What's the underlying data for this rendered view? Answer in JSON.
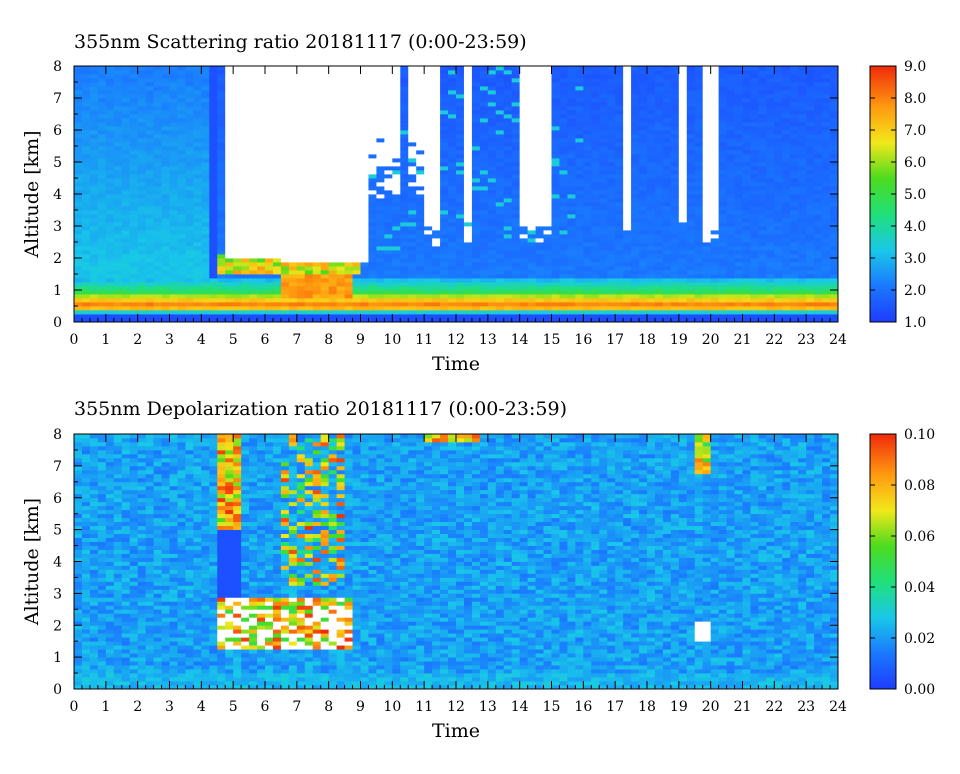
{
  "chart_data": [
    {
      "type": "heatmap",
      "title": "355nm Scattering ratio  20181117 (0:00-23:59)",
      "xlabel": "Time",
      "ylabel": "Altitude [km]",
      "xlim": [
        0,
        24
      ],
      "ylim": [
        0,
        8
      ],
      "xticks": [
        "0",
        "1",
        "2",
        "3",
        "4",
        "5",
        "6",
        "7",
        "8",
        "9",
        "10",
        "11",
        "12",
        "13",
        "14",
        "15",
        "16",
        "17",
        "18",
        "19",
        "20",
        "21",
        "22",
        "23",
        "24"
      ],
      "yticks": [
        "0",
        "1",
        "2",
        "3",
        "4",
        "5",
        "6",
        "7",
        "8"
      ],
      "colorbar": {
        "min": 1.0,
        "max": 9.0,
        "ticks": [
          "1.0",
          "2.0",
          "3.0",
          "4.0",
          "5.0",
          "6.0",
          "7.0",
          "8.0",
          "9.0"
        ]
      },
      "features": {
        "boundary_layer_top_km": 1.3,
        "clear_sky_high_value_band_km": [
          0.3,
          0.8
        ],
        "saturated_cloud_periods_h": [
          [
            4.6,
            9.4
          ],
          [
            11.0,
            11.6
          ],
          [
            12.3,
            12.6
          ],
          [
            13.9,
            15.0
          ],
          [
            17.2,
            17.5
          ],
          [
            18.9,
            19.3
          ],
          [
            19.7,
            20.3
          ]
        ],
        "low_cloud_layer_km": [
          1.6,
          2.1
        ]
      }
    },
    {
      "type": "heatmap",
      "title": "355nm Depolarization ratio  20181117 (0:00-23:59)",
      "xlabel": "Time",
      "ylabel": "Altitude [km]",
      "xlim": [
        0,
        24
      ],
      "ylim": [
        0,
        8
      ],
      "xticks": [
        "0",
        "1",
        "2",
        "3",
        "4",
        "5",
        "6",
        "7",
        "8",
        "9",
        "10",
        "11",
        "12",
        "13",
        "14",
        "15",
        "16",
        "17",
        "18",
        "19",
        "20",
        "21",
        "22",
        "23",
        "24"
      ],
      "yticks": [
        "0",
        "1",
        "2",
        "3",
        "4",
        "5",
        "6",
        "7",
        "8"
      ],
      "colorbar": {
        "min": 0.0,
        "max": 0.1,
        "ticks": [
          "0.00",
          "0.02",
          "0.04",
          "0.06",
          "0.08",
          "0.10"
        ]
      },
      "features": {
        "high_depol_periods_h": [
          [
            4.6,
            5.4
          ],
          [
            6.4,
            8.6
          ]
        ],
        "low_cloud_layer_km": [
          1.4,
          2.8
        ],
        "isolated_event_h": 19.8
      }
    }
  ]
}
